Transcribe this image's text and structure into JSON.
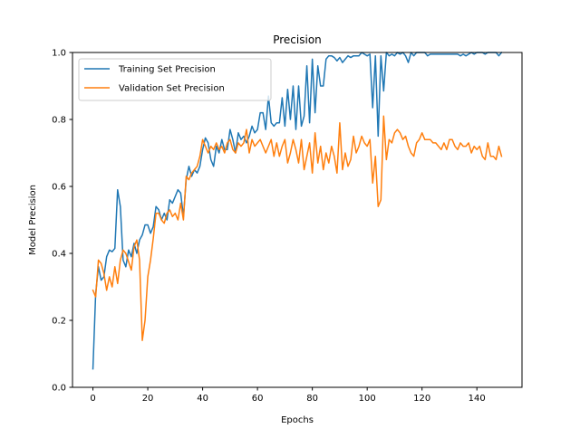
{
  "chart_data": {
    "type": "line",
    "title": "Precision",
    "xlabel": "Epochs",
    "ylabel": "Model Precision",
    "xlim": [
      -7.45,
      156.45
    ],
    "ylim": [
      0.0,
      1.0
    ],
    "xticks": [
      0,
      20,
      40,
      60,
      80,
      100,
      120,
      140
    ],
    "yticks": [
      0.0,
      0.2,
      0.4,
      0.6,
      0.8,
      1.0
    ],
    "xtick_labels": [
      "0",
      "20",
      "40",
      "60",
      "80",
      "100",
      "120",
      "140"
    ],
    "ytick_labels": [
      "0.0",
      "0.2",
      "0.4",
      "0.6",
      "0.8",
      "1.0"
    ],
    "legend_position": "top-left",
    "grid": false,
    "series": [
      {
        "name": "Training Set Precision",
        "color": "#1f77b4",
        "x": [
          0,
          1,
          2,
          3,
          4,
          5,
          6,
          7,
          8,
          9,
          10,
          11,
          12,
          13,
          14,
          15,
          16,
          17,
          18,
          19,
          20,
          21,
          22,
          23,
          24,
          25,
          26,
          27,
          28,
          29,
          30,
          31,
          32,
          33,
          34,
          35,
          36,
          37,
          38,
          39,
          40,
          41,
          42,
          43,
          44,
          45,
          46,
          47,
          48,
          49,
          50,
          51,
          52,
          53,
          54,
          55,
          56,
          57,
          58,
          59,
          60,
          61,
          62,
          63,
          64,
          65,
          66,
          67,
          68,
          69,
          70,
          71,
          72,
          73,
          74,
          75,
          76,
          77,
          78,
          79,
          80,
          81,
          82,
          83,
          84,
          85,
          86,
          87,
          88,
          89,
          90,
          91,
          92,
          93,
          94,
          95,
          96,
          97,
          98,
          99,
          100,
          101,
          102,
          103,
          104,
          105,
          106,
          107,
          108,
          109,
          110,
          111,
          112,
          113,
          114,
          115,
          116,
          117,
          118,
          119,
          120,
          121,
          122,
          123,
          124,
          125,
          126,
          127,
          128,
          129,
          130,
          131,
          132,
          133,
          134,
          135,
          136,
          137,
          138,
          139,
          140,
          141,
          142,
          143,
          144,
          145,
          146,
          147,
          148,
          149
        ],
        "values": [
          0.055,
          0.28,
          0.36,
          0.32,
          0.33,
          0.39,
          0.41,
          0.405,
          0.415,
          0.59,
          0.54,
          0.38,
          0.36,
          0.41,
          0.39,
          0.43,
          0.4,
          0.44,
          0.455,
          0.485,
          0.485,
          0.46,
          0.48,
          0.54,
          0.53,
          0.5,
          0.52,
          0.5,
          0.56,
          0.55,
          0.57,
          0.59,
          0.58,
          0.51,
          0.62,
          0.66,
          0.63,
          0.65,
          0.64,
          0.66,
          0.71,
          0.745,
          0.73,
          0.68,
          0.66,
          0.72,
          0.7,
          0.74,
          0.71,
          0.71,
          0.77,
          0.74,
          0.7,
          0.76,
          0.74,
          0.75,
          0.73,
          0.75,
          0.78,
          0.76,
          0.77,
          0.82,
          0.82,
          0.77,
          0.87,
          0.79,
          0.78,
          0.79,
          0.79,
          0.865,
          0.78,
          0.89,
          0.8,
          0.9,
          0.77,
          0.9,
          0.78,
          0.81,
          0.96,
          0.79,
          0.98,
          0.82,
          0.96,
          0.9,
          0.9,
          0.98,
          0.99,
          0.99,
          0.985,
          0.975,
          0.985,
          0.97,
          0.98,
          0.99,
          0.985,
          0.99,
          0.99,
          0.99,
          1.0,
          0.995,
          0.99,
          0.995,
          0.835,
          0.99,
          0.75,
          0.99,
          0.885,
          1.0,
          0.99,
          0.995,
          0.99,
          1.0,
          0.995,
          1.0,
          0.99,
          0.97,
          1.0,
          0.99,
          1.0,
          1.0,
          1.0,
          1.0,
          0.99,
          0.995,
          0.995,
          0.995,
          0.995,
          0.995,
          0.995,
          0.995,
          0.995,
          0.995,
          0.995,
          0.995,
          0.99,
          0.995,
          0.99,
          0.995,
          1.0,
          0.995,
          1.0,
          1.0,
          1.0,
          0.995,
          1.0,
          1.0,
          1.0,
          1.0,
          0.99,
          1.0
        ]
      },
      {
        "name": "Validation Set Precision",
        "color": "#ff7f0e",
        "x": [
          0,
          1,
          2,
          3,
          4,
          5,
          6,
          7,
          8,
          9,
          10,
          11,
          12,
          13,
          14,
          15,
          16,
          17,
          18,
          19,
          20,
          21,
          22,
          23,
          24,
          25,
          26,
          27,
          28,
          29,
          30,
          31,
          32,
          33,
          34,
          35,
          36,
          37,
          38,
          39,
          40,
          41,
          42,
          43,
          44,
          45,
          46,
          47,
          48,
          49,
          50,
          51,
          52,
          53,
          54,
          55,
          56,
          57,
          58,
          59,
          60,
          61,
          62,
          63,
          64,
          65,
          66,
          67,
          68,
          69,
          70,
          71,
          72,
          73,
          74,
          75,
          76,
          77,
          78,
          79,
          80,
          81,
          82,
          83,
          84,
          85,
          86,
          87,
          88,
          89,
          90,
          91,
          92,
          93,
          94,
          95,
          96,
          97,
          98,
          99,
          100,
          101,
          102,
          103,
          104,
          105,
          106,
          107,
          108,
          109,
          110,
          111,
          112,
          113,
          114,
          115,
          116,
          117,
          118,
          119,
          120,
          121,
          122,
          123,
          124,
          125,
          126,
          127,
          128,
          129,
          130,
          131,
          132,
          133,
          134,
          135,
          136,
          137,
          138,
          139,
          140,
          141,
          142,
          143,
          144,
          145,
          146,
          147,
          148,
          149
        ],
        "values": [
          0.29,
          0.27,
          0.38,
          0.37,
          0.34,
          0.29,
          0.33,
          0.3,
          0.36,
          0.31,
          0.38,
          0.41,
          0.4,
          0.375,
          0.35,
          0.42,
          0.44,
          0.38,
          0.14,
          0.2,
          0.33,
          0.38,
          0.445,
          0.52,
          0.52,
          0.5,
          0.49,
          0.52,
          0.53,
          0.51,
          0.52,
          0.5,
          0.55,
          0.5,
          0.63,
          0.62,
          0.64,
          0.65,
          0.66,
          0.69,
          0.74,
          0.72,
          0.7,
          0.72,
          0.71,
          0.73,
          0.71,
          0.72,
          0.7,
          0.73,
          0.74,
          0.71,
          0.7,
          0.73,
          0.72,
          0.73,
          0.77,
          0.7,
          0.74,
          0.72,
          0.73,
          0.74,
          0.72,
          0.7,
          0.72,
          0.74,
          0.69,
          0.73,
          0.69,
          0.72,
          0.74,
          0.67,
          0.7,
          0.74,
          0.71,
          0.67,
          0.74,
          0.65,
          0.69,
          0.73,
          0.64,
          0.76,
          0.67,
          0.72,
          0.65,
          0.7,
          0.67,
          0.72,
          0.69,
          0.64,
          0.79,
          0.65,
          0.7,
          0.66,
          0.68,
          0.75,
          0.7,
          0.72,
          0.75,
          0.73,
          0.72,
          0.74,
          0.61,
          0.69,
          0.54,
          0.56,
          0.81,
          0.68,
          0.74,
          0.73,
          0.76,
          0.77,
          0.76,
          0.74,
          0.75,
          0.72,
          0.7,
          0.69,
          0.73,
          0.74,
          0.76,
          0.74,
          0.74,
          0.74,
          0.73,
          0.73,
          0.72,
          0.71,
          0.73,
          0.71,
          0.74,
          0.74,
          0.72,
          0.71,
          0.73,
          0.72,
          0.72,
          0.73,
          0.7,
          0.72,
          0.71,
          0.72,
          0.69,
          0.68,
          0.73,
          0.69,
          0.69,
          0.68,
          0.72,
          0.69
        ]
      }
    ]
  }
}
